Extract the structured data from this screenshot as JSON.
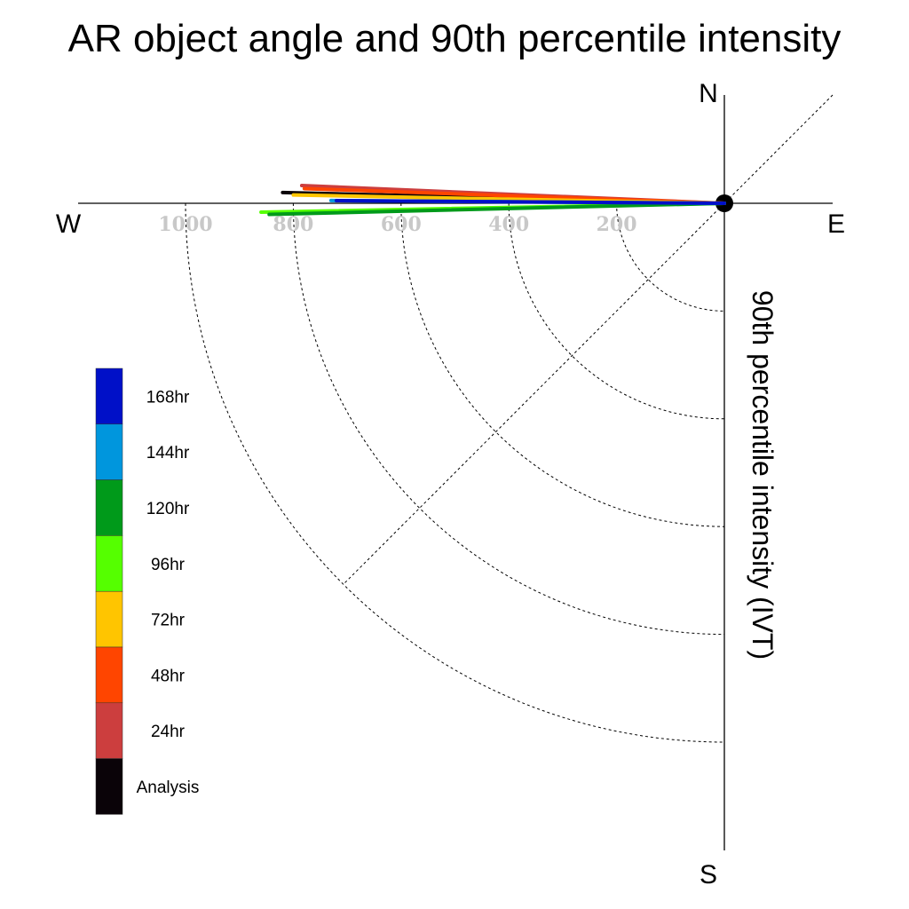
{
  "chart_data": {
    "type": "polar",
    "title": "AR object angle and 90th percentile intensity",
    "axis_label": "90th percentile intensity (IVT)",
    "compass": {
      "north": "N",
      "east": "E",
      "south": "S",
      "west": "W"
    },
    "radial_ticks": [
      200,
      400,
      600,
      800,
      1000
    ],
    "radial_tick_labels": [
      "200",
      "400",
      "600",
      "800",
      "1000"
    ],
    "rmax": 1200,
    "grid": true,
    "legend_position": "left",
    "series": [
      {
        "name": "Analysis",
        "color": "#0a0308",
        "angle_deg": 178.6,
        "intensity": 820
      },
      {
        "name": "24hr",
        "color": "#cc3e3e",
        "angle_deg": 177.6,
        "intensity": 785
      },
      {
        "name": "48hr",
        "color": "#ff4500",
        "angle_deg": 178.0,
        "intensity": 780
      },
      {
        "name": "72hr",
        "color": "#ffc500",
        "angle_deg": 178.9,
        "intensity": 800
      },
      {
        "name": "96hr",
        "color": "#55ff00",
        "angle_deg": 181.1,
        "intensity": 860
      },
      {
        "name": "120hr",
        "color": "#009a1a",
        "angle_deg": 181.4,
        "intensity": 845
      },
      {
        "name": "144hr",
        "color": "#0096dd",
        "angle_deg": 179.6,
        "intensity": 730
      },
      {
        "name": "168hr",
        "color": "#0010c8",
        "angle_deg": 179.6,
        "intensity": 720
      }
    ],
    "legend_order": [
      "168hr",
      "144hr",
      "120hr",
      "96hr",
      "72hr",
      "48hr",
      "24hr",
      "Analysis"
    ]
  }
}
